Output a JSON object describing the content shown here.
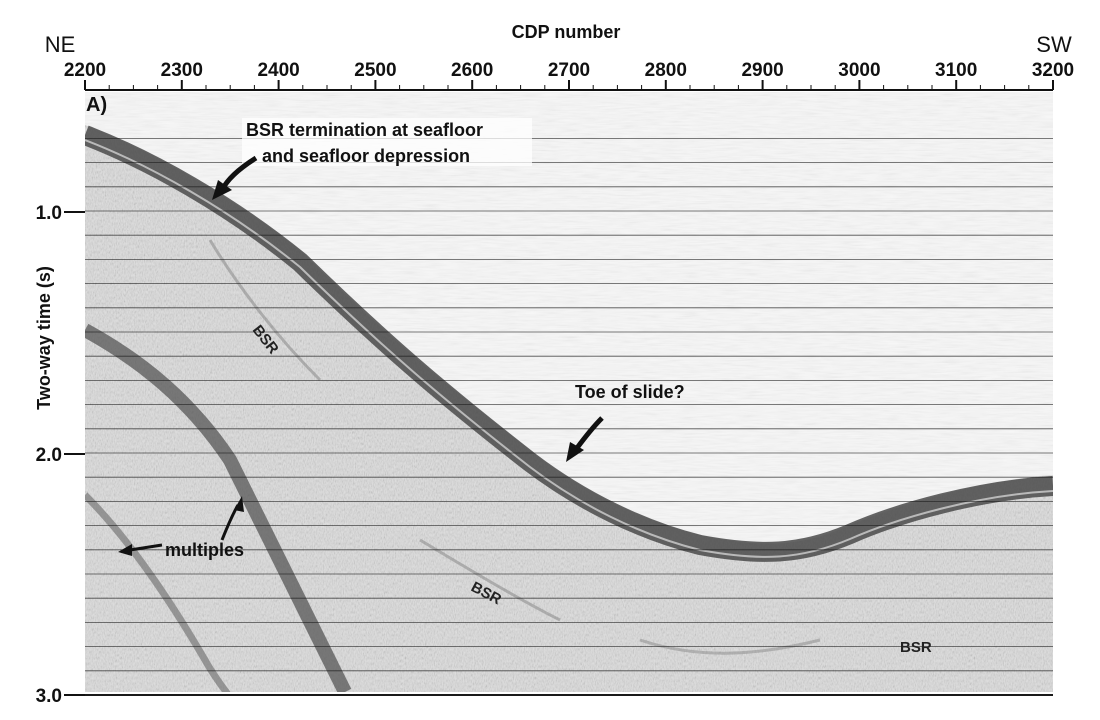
{
  "axes": {
    "x_title": "CDP number",
    "x_ticks": [
      "2200",
      "2300",
      "2400",
      "2500",
      "2600",
      "2700",
      "2800",
      "2900",
      "3000",
      "3100",
      "3200"
    ],
    "y_title": "Two-way time (s)",
    "y_ticks": [
      "1.0",
      "2.0",
      "3.0"
    ]
  },
  "directions": {
    "left": "NE",
    "right": "SW"
  },
  "panel_label": "A)",
  "annotations": {
    "bsr_termination_line1": "BSR termination at seafloor",
    "bsr_termination_line2": "and seafloor depression",
    "toe_of_slide": "Toe of slide?",
    "multiples": "multiples",
    "bsr_upper": "BSR",
    "bsr_middle": "BSR",
    "bsr_right": "BSR"
  },
  "colors": {
    "seismic_background": "#e2e2e2",
    "reflector_dark": "#3a3a3a",
    "grid_line": "#1a1a1a",
    "text": "#111111"
  }
}
